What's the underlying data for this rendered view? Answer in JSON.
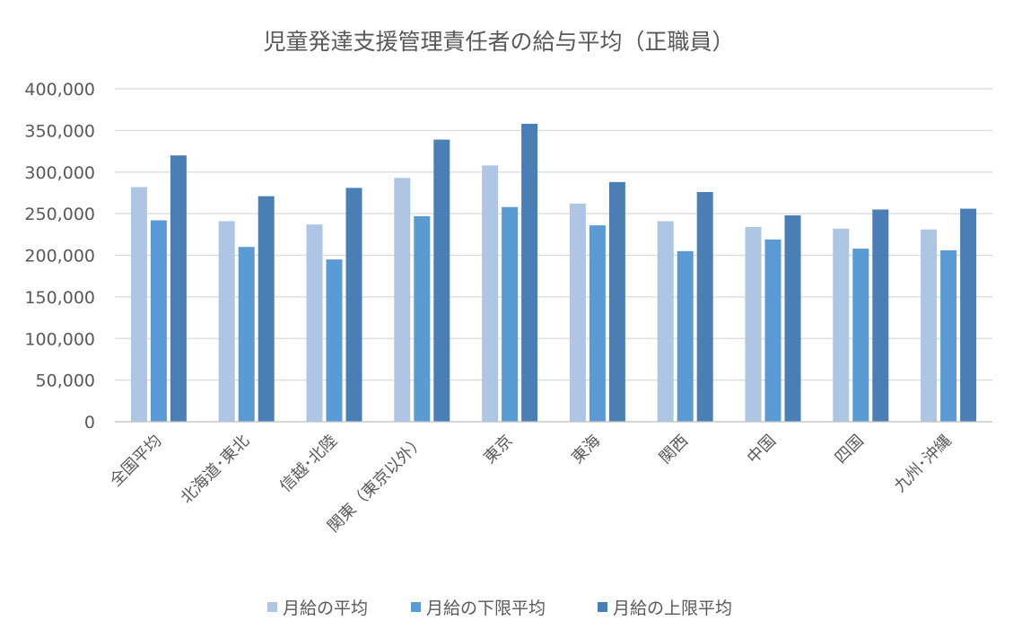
{
  "chart_data": {
    "type": "bar",
    "title": "児童発達支援管理責任者の給与平均（正職員）",
    "categories": [
      "全国平均",
      "北海道･東北",
      "信越･北陸",
      "関東（東京以外）",
      "東京",
      "東海",
      "関西",
      "中国",
      "四国",
      "九州･沖縄"
    ],
    "ylim": [
      0,
      400000
    ],
    "yticks": [
      0,
      50000,
      100000,
      150000,
      200000,
      250000,
      300000,
      350000,
      400000
    ],
    "ytick_labels": [
      "0",
      "50,000",
      "100,000",
      "150,000",
      "200,000",
      "250,000",
      "300,000",
      "350,000",
      "400,000"
    ],
    "grid": true,
    "legend_position": "bottom",
    "series": [
      {
        "name": "月給の平均",
        "color": "#aec6e4",
        "values": [
          282000,
          241000,
          237000,
          293000,
          308000,
          262000,
          241000,
          234000,
          232000,
          231000
        ]
      },
      {
        "name": "月給の下限平均",
        "color": "#5b9bd5",
        "values": [
          242000,
          210000,
          195000,
          247000,
          258000,
          236000,
          205000,
          219000,
          208000,
          206000
        ]
      },
      {
        "name": "月給の上限平均",
        "color": "#4a7fb5",
        "values": [
          320000,
          271000,
          281000,
          339000,
          358000,
          288000,
          276000,
          248000,
          255000,
          256000
        ]
      }
    ]
  }
}
